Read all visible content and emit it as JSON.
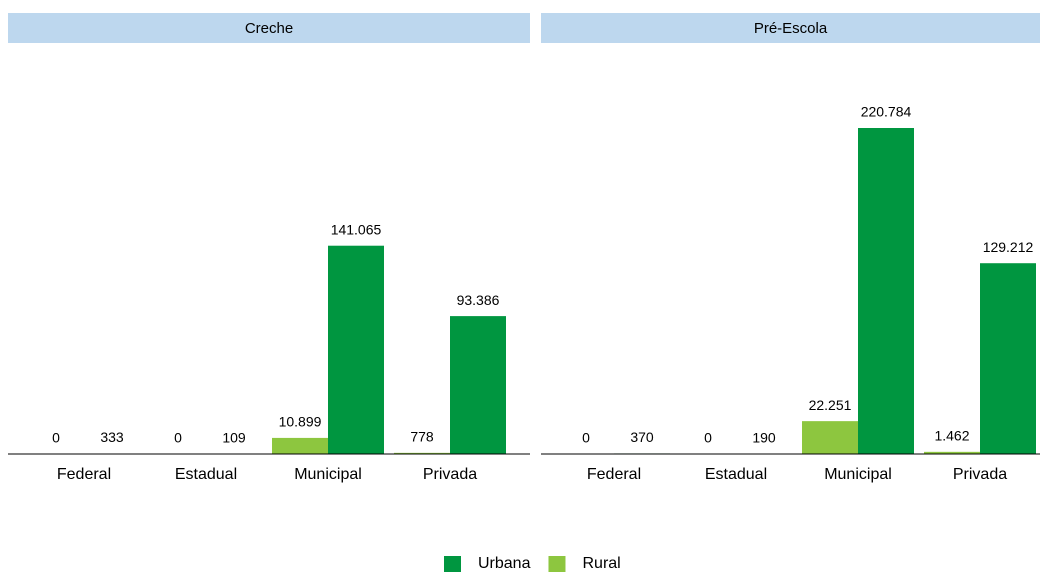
{
  "chart_data": [
    {
      "type": "bar",
      "title": "Creche",
      "categories": [
        "Federal",
        "Estadual",
        "Municipal",
        "Privada"
      ],
      "series": [
        {
          "name": "Urbana",
          "color": "#009640",
          "values": [
            333,
            109,
            141065,
            93386
          ],
          "value_labels": [
            "333",
            "109",
            "141.065",
            "93.386"
          ]
        },
        {
          "name": "Rural",
          "color": "#8dc63f",
          "values": [
            0,
            0,
            10899,
            778
          ],
          "value_labels": [
            "0",
            "0",
            "10.899",
            "778"
          ]
        }
      ]
    },
    {
      "type": "bar",
      "title": "Pré-Escola",
      "categories": [
        "Federal",
        "Estadual",
        "Municipal",
        "Privada"
      ],
      "series": [
        {
          "color": "#009640",
          "values": [
            370,
            190,
            220784,
            129212
          ],
          "value_labels": [
            "370",
            "190",
            "220.784",
            "129.212"
          ]
        },
        {
          "color": "#8dc63f",
          "values": [
            0,
            0,
            22251,
            1462
          ],
          "value_labels": [
            "0",
            "0",
            "22.251",
            "1.462"
          ]
        }
      ]
    }
  ]
}
